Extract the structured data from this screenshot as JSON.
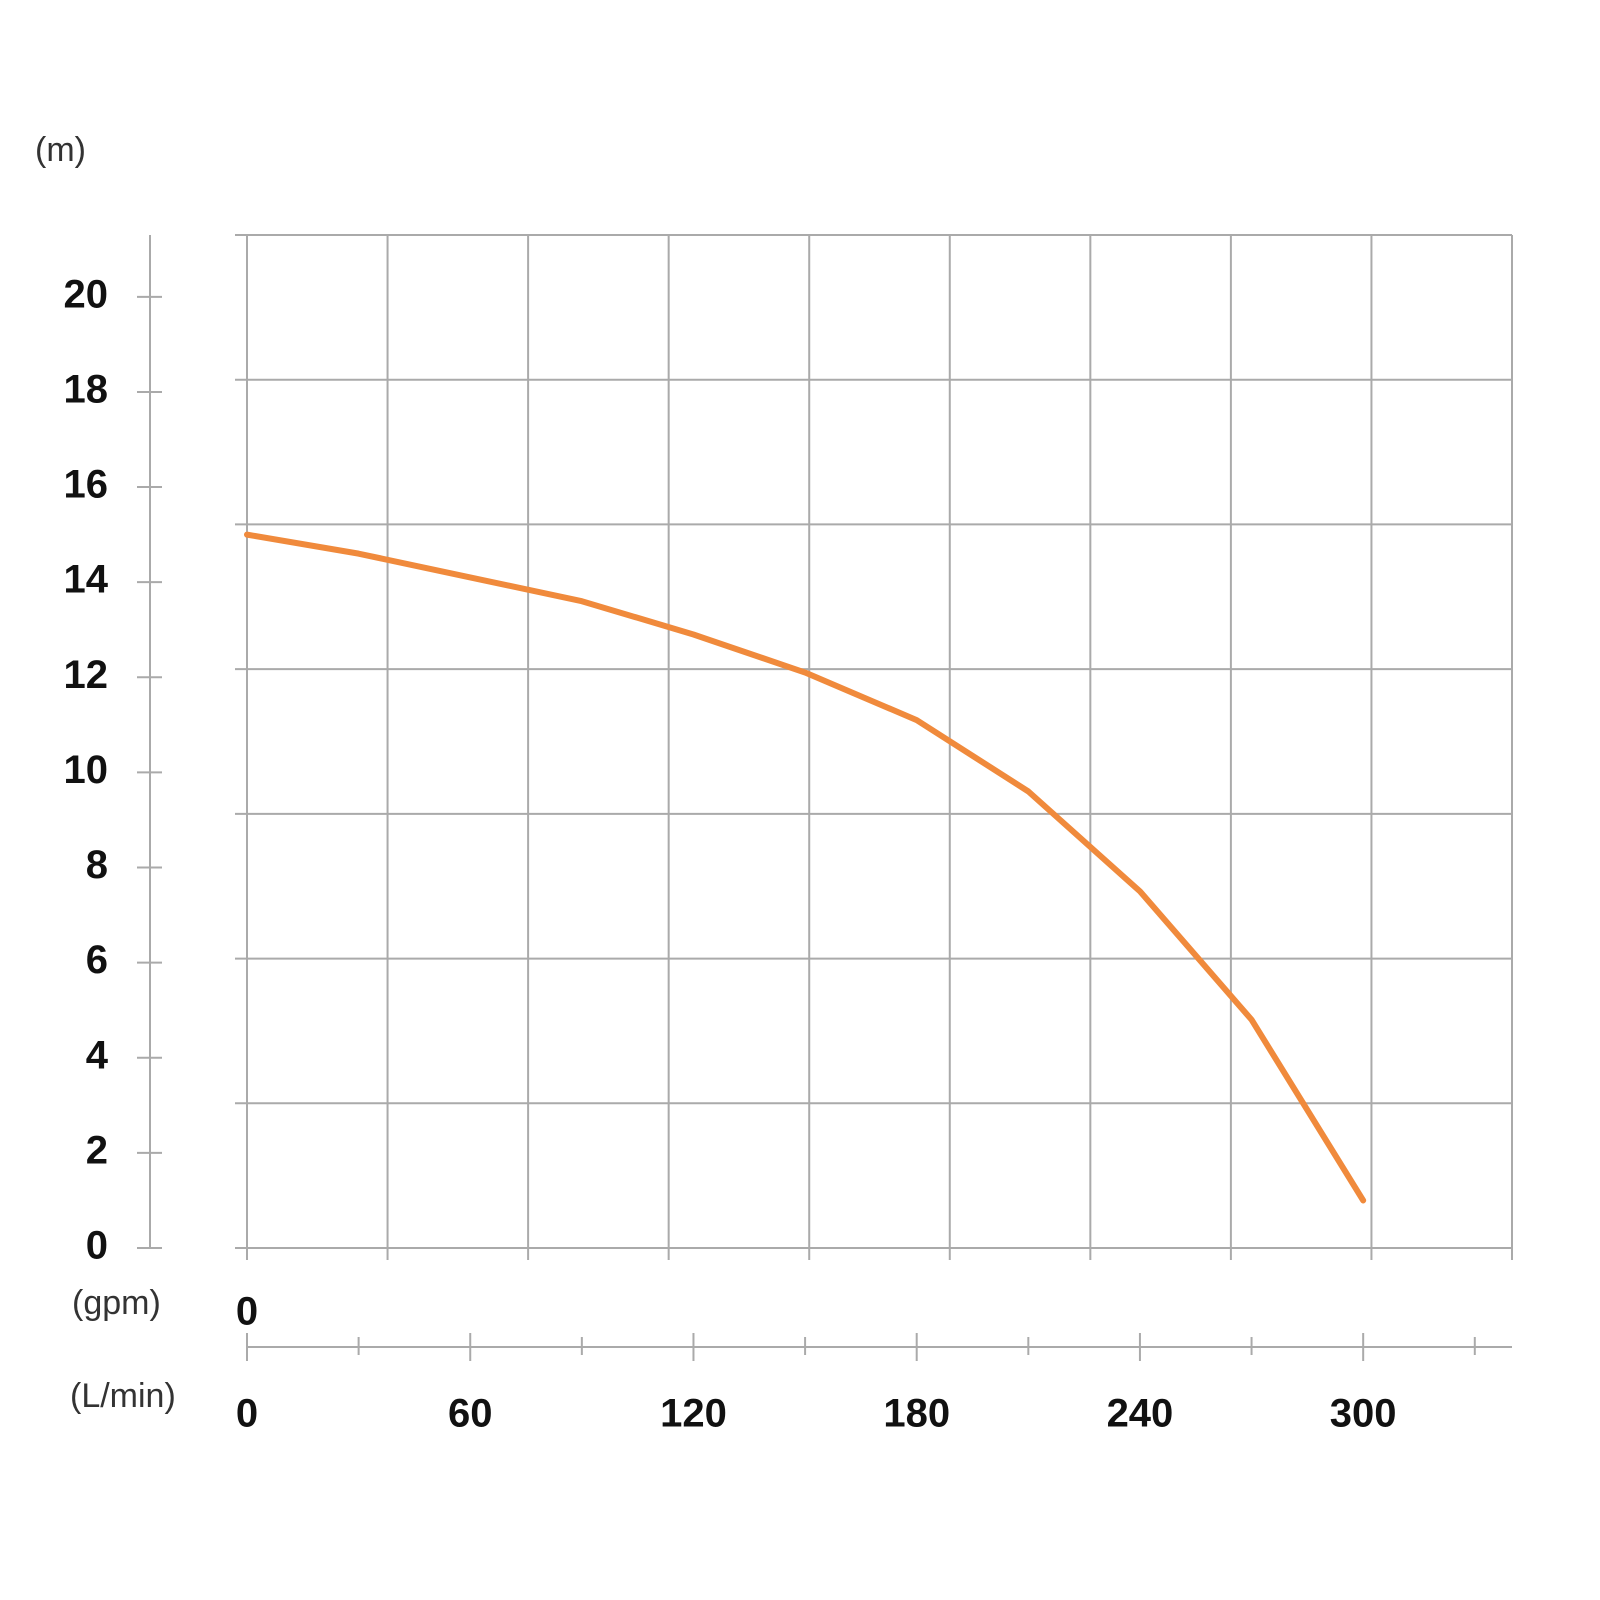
{
  "chart_data": {
    "type": "line",
    "y_label": "(m)",
    "x_label": "(L/min)",
    "x2_label": "(gpm)",
    "x2ticks": [
      0
    ],
    "x": [
      0,
      30,
      60,
      90,
      120,
      150,
      180,
      210,
      240,
      270,
      300
    ],
    "series": [
      {
        "color": "#f08a3c",
        "values": [
          15.0,
          14.6,
          14.1,
          13.6,
          12.9,
          12.1,
          11.1,
          9.6,
          7.5,
          4.8,
          1.0
        ]
      }
    ],
    "xlim": [
      0,
      340
    ],
    "xticks": [
      0,
      60,
      120,
      180,
      240,
      300
    ],
    "xminorticks": [
      30,
      90,
      150,
      210,
      270,
      330
    ],
    "ylim": [
      0,
      21.3
    ],
    "yticks": [
      0,
      2,
      4,
      6,
      8,
      10,
      12,
      14,
      16,
      18,
      20
    ]
  }
}
